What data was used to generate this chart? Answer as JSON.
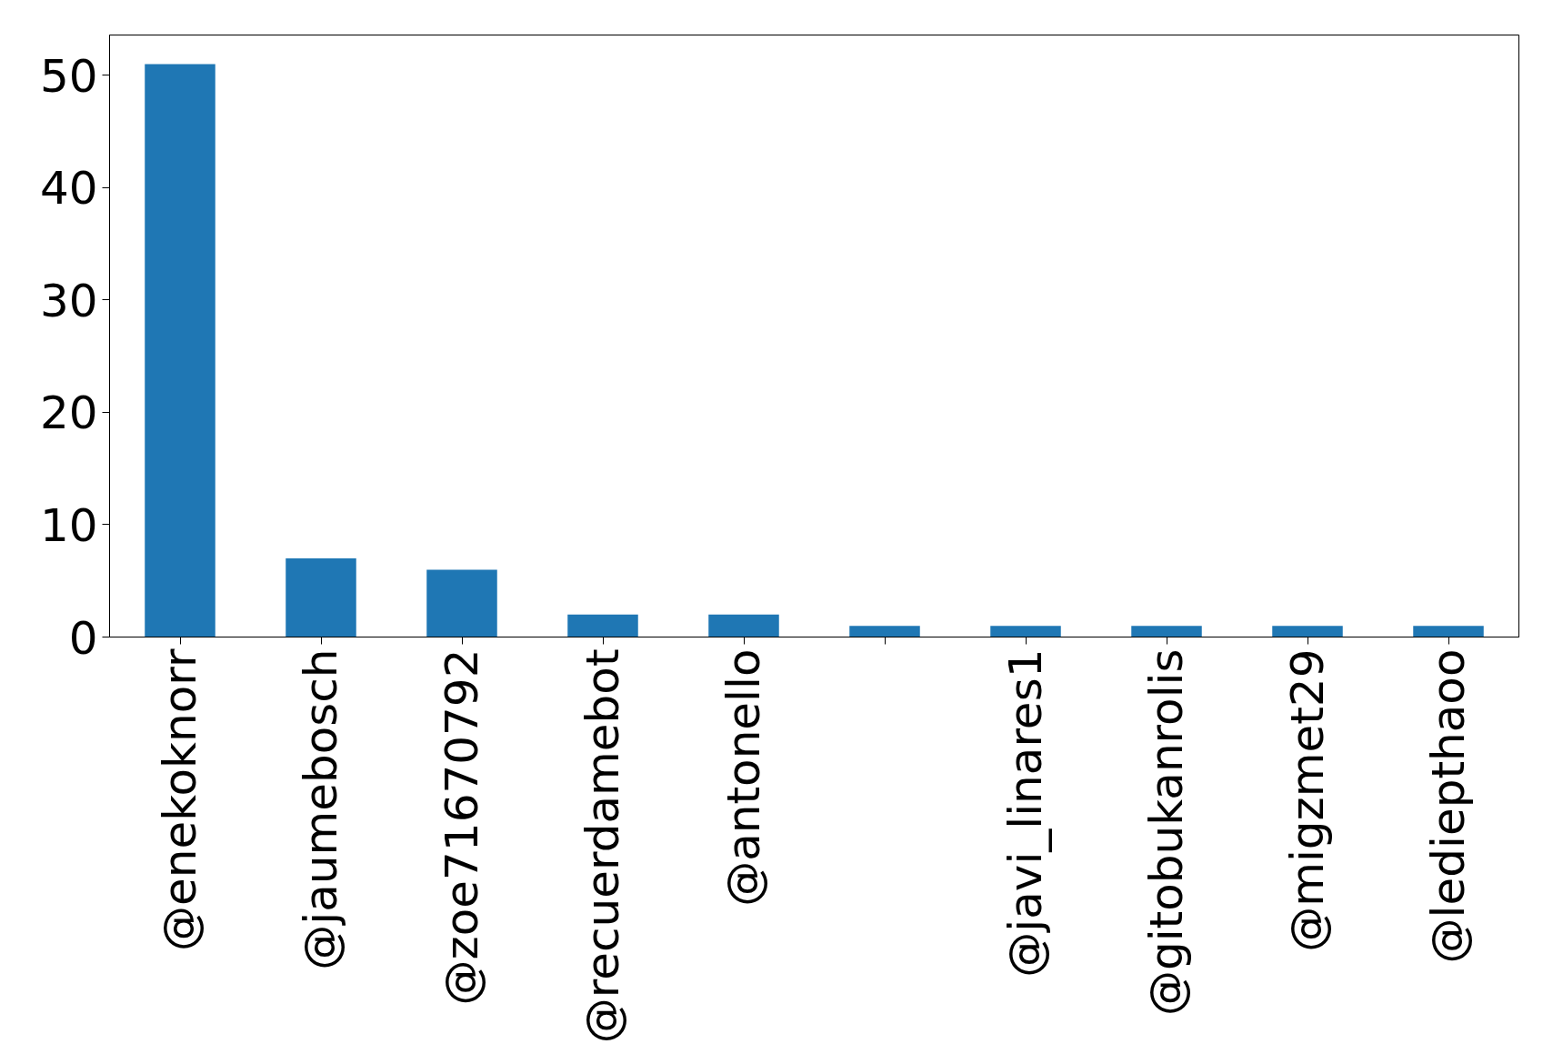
{
  "chart_data": {
    "type": "bar",
    "categories": [
      "@enekoknorr",
      "@jaumebosch",
      "@zoe71670792",
      "@recuerdamebot",
      "@antonello",
      null,
      "@javi_linares1",
      "@gitobukanrolis",
      "@migzmet29",
      "@lediepthaoo"
    ],
    "values": [
      51,
      7,
      6,
      2,
      2,
      1,
      1,
      1,
      1,
      1
    ],
    "color": "#1f77b4",
    "ylim": [
      0,
      53.6
    ],
    "yticks": [
      0,
      10,
      20,
      30,
      40,
      50
    ],
    "grid": false
  }
}
